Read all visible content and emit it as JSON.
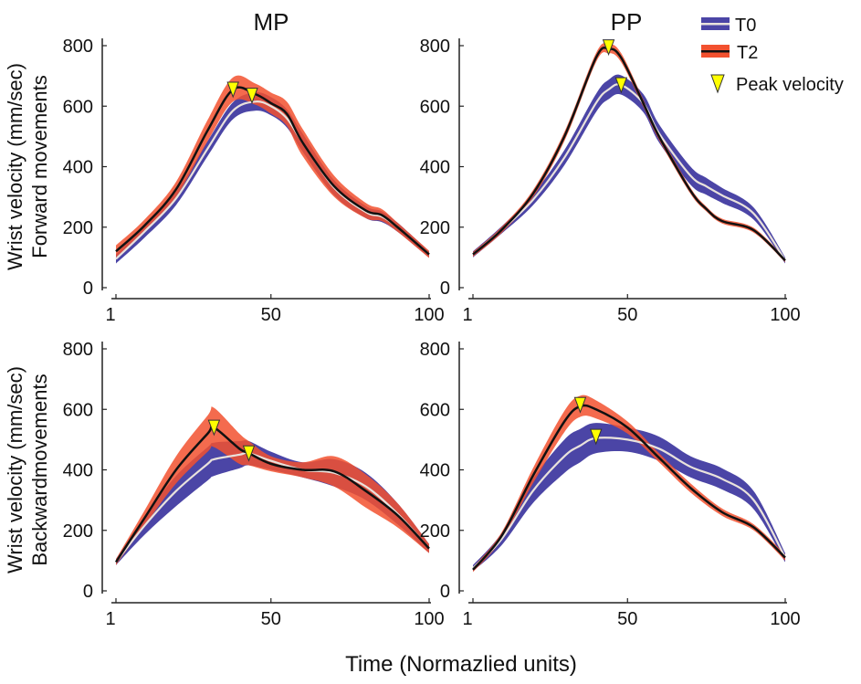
{
  "chart_data": {
    "type": "line",
    "xlabel": "Time (Normazlied units)",
    "legend": {
      "placement": "top-right",
      "entries": [
        "T0",
        "T2",
        "Peak velocity"
      ]
    },
    "colors": {
      "T0_band": "#4b45a6",
      "T0_line": "#e9e2dc",
      "T2_band": "#f2512f",
      "T2_line": "#111111",
      "marker": "#ffff00"
    },
    "panels": [
      {
        "title": "MP",
        "ylabel": [
          "Wrist velocity (mm/sec)",
          "Forward movements"
        ],
        "ylim": [
          0,
          800
        ],
        "yticks": [
          "0",
          "200",
          "400",
          "600",
          "800"
        ],
        "xticks": [
          "1",
          "50",
          "100"
        ],
        "xlim": [
          1,
          100
        ],
        "x": [
          1,
          10,
          20,
          30,
          38,
          45,
          50,
          55,
          60,
          70,
          80,
          85,
          90,
          100
        ],
        "series": [
          {
            "name": "T0",
            "mean": [
              95,
              185,
              295,
              460,
              585,
              615,
              600,
              560,
              480,
              330,
              250,
              235,
              200,
              110
            ],
            "sd": [
              15,
              20,
              22,
              25,
              28,
              30,
              30,
              30,
              30,
              25,
              20,
              18,
              15,
              10
            ],
            "peak": [
              44,
              635
            ]
          },
          {
            "name": "T2",
            "mean": [
              120,
              205,
              325,
              520,
              655,
              640,
              610,
              575,
              480,
              335,
              255,
              240,
              200,
              110
            ],
            "sd": [
              20,
              20,
              25,
              35,
              40,
              35,
              35,
              40,
              45,
              35,
              25,
              20,
              15,
              12
            ],
            "peak": [
              38,
              655
            ]
          }
        ]
      },
      {
        "title": "PP",
        "ylabel": [],
        "ylim": [
          0,
          800
        ],
        "yticks": [
          "0",
          "200",
          "400",
          "600",
          "800"
        ],
        "xticks": [
          "1",
          "50",
          "100"
        ],
        "xlim": [
          1,
          100
        ],
        "x": [
          1,
          10,
          20,
          30,
          40,
          44,
          48,
          55,
          60,
          70,
          75,
          80,
          90,
          100
        ],
        "series": [
          {
            "name": "T0",
            "mean": [
              110,
              190,
              290,
              430,
              610,
              655,
              670,
              610,
              510,
              370,
              335,
              305,
              245,
              90
            ],
            "sd": [
              10,
              12,
              18,
              25,
              30,
              32,
              32,
              30,
              30,
              30,
              28,
              25,
              20,
              10
            ],
            "peak": [
              48,
              670
            ]
          },
          {
            "name": "T2",
            "mean": [
              110,
              190,
              310,
              500,
              760,
              790,
              760,
              610,
              500,
              320,
              260,
              220,
              190,
              90
            ],
            "sd": [
              8,
              10,
              12,
              15,
              15,
              15,
              15,
              12,
              12,
              10,
              8,
              8,
              8,
              6
            ],
            "peak": [
              44,
              795
            ]
          }
        ]
      },
      {
        "title": "",
        "ylabel": [
          "Wrist velocity (mm/sec)",
          "Backwardmovements"
        ],
        "ylim": [
          0,
          800
        ],
        "yticks": [
          "0",
          "200",
          "400",
          "600",
          "800"
        ],
        "xticks": [
          "1",
          "50",
          "100"
        ],
        "xlim": [
          1,
          100
        ],
        "x": [
          1,
          10,
          20,
          30,
          32,
          40,
          43,
          50,
          60,
          70,
          80,
          90,
          100
        ],
        "series": [
          {
            "name": "T0",
            "mean": [
              95,
              215,
              330,
              420,
              435,
              450,
              455,
              430,
              400,
              390,
              345,
              255,
              140
            ],
            "sd": [
              10,
              30,
              50,
              55,
              55,
              45,
              40,
              30,
              25,
              45,
              45,
              35,
              15
            ],
            "peak": [
              43,
              455
            ]
          },
          {
            "name": "T2",
            "mean": [
              95,
              240,
              400,
              520,
              540,
              470,
              455,
              420,
              400,
              395,
              330,
              250,
              140
            ],
            "sd": [
              10,
              25,
              45,
              60,
              65,
              50,
              40,
              25,
              25,
              50,
              55,
              40,
              15
            ],
            "peak": [
              32,
              540
            ]
          }
        ]
      },
      {
        "title": "",
        "ylabel": [],
        "ylim": [
          0,
          800
        ],
        "yticks": [
          "0",
          "200",
          "400",
          "600",
          "800"
        ],
        "xticks": [
          "1",
          "50",
          "100"
        ],
        "xlim": [
          1,
          100
        ],
        "x": [
          1,
          10,
          20,
          30,
          35,
          40,
          50,
          60,
          70,
          80,
          90,
          100
        ],
        "series": [
          {
            "name": "T0",
            "mean": [
              75,
              170,
              330,
              445,
              480,
              505,
              500,
              470,
              410,
              370,
              300,
              110
            ],
            "sd": [
              10,
              20,
              40,
              55,
              55,
              50,
              40,
              40,
              35,
              35,
              30,
              15
            ],
            "peak": [
              40,
              510
            ]
          },
          {
            "name": "T2",
            "mean": [
              70,
              180,
              380,
              560,
              610,
              600,
              540,
              440,
              340,
              260,
              210,
              110
            ],
            "sd": [
              8,
              12,
              25,
              35,
              35,
              30,
              20,
              15,
              15,
              12,
              10,
              10
            ],
            "peak": [
              35,
              615
            ]
          }
        ]
      }
    ]
  }
}
